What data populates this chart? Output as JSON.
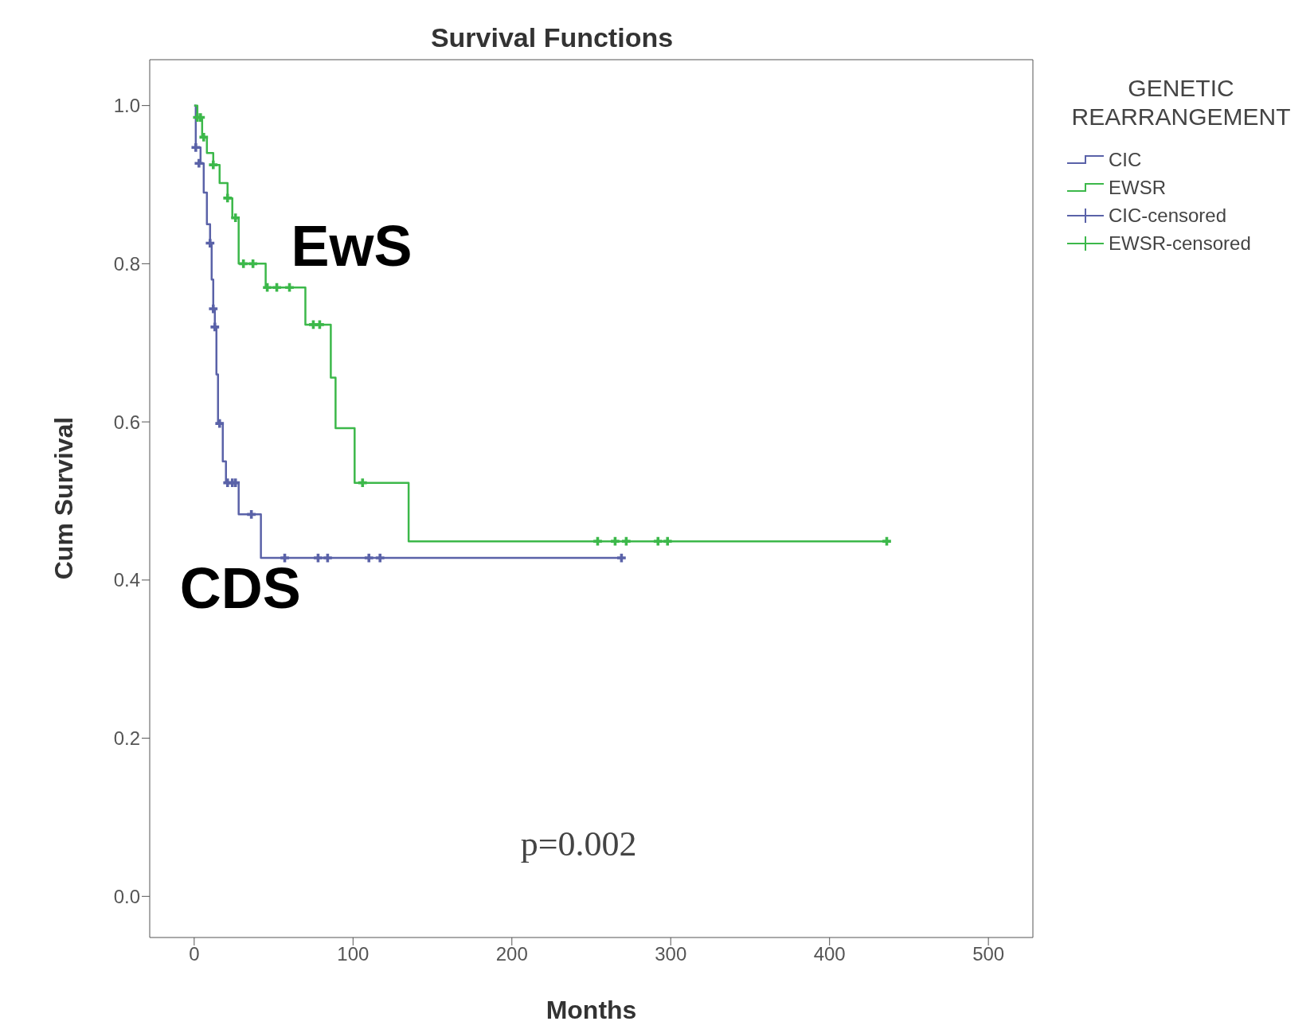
{
  "chart_data": {
    "type": "step",
    "title": "Survival Functions",
    "xlabel": "Months",
    "ylabel": "Cum Survival",
    "legend_title": "GENETIC REARRANGEMENT",
    "legend": "top right",
    "grid": false,
    "xlim": [
      -28,
      528
    ],
    "xticks": [
      0,
      100,
      200,
      300,
      400,
      500
    ],
    "ylim": [
      -0.052,
      1.058
    ],
    "yticks": [
      {
        "value": 0,
        "label": "0.0"
      },
      {
        "value": 0.2,
        "label": "0.2"
      },
      {
        "value": 0.4,
        "label": "0.4"
      },
      {
        "value": 0.6,
        "label": "0.6"
      },
      {
        "value": 0.8,
        "label": "0.8"
      },
      {
        "value": 1,
        "label": "1.0"
      }
    ],
    "series": [
      {
        "name": "CIC",
        "color": "#5a62a8",
        "marker": "none",
        "x": [
          0,
          1,
          4,
          6,
          8,
          10,
          11,
          12,
          13,
          14,
          15,
          18,
          20,
          28,
          42,
          269
        ],
        "values": [
          1,
          0.947,
          0.927,
          0.89,
          0.85,
          0.826,
          0.78,
          0.743,
          0.72,
          0.66,
          0.598,
          0.55,
          0.523,
          0.483,
          0.428,
          0.428
        ]
      },
      {
        "name": "EWSR",
        "color": "#3cb84a",
        "marker": "none",
        "x": [
          0,
          2,
          5,
          8,
          12,
          16,
          21,
          24,
          28,
          45,
          70,
          86,
          89,
          101,
          135,
          436
        ],
        "values": [
          1,
          0.985,
          0.96,
          0.94,
          0.925,
          0.902,
          0.883,
          0.858,
          0.8,
          0.77,
          0.723,
          0.656,
          0.592,
          0.523,
          0.449,
          0.449
        ]
      },
      {
        "name": "CIC-censored",
        "type": "scatter",
        "color": "#5a62a8",
        "marker": "cross",
        "x": [
          1,
          3,
          10,
          12,
          13,
          16,
          21,
          24,
          26,
          36,
          57,
          78,
          84,
          110,
          117,
          269
        ],
        "values": [
          0.947,
          0.927,
          0.826,
          0.743,
          0.72,
          0.598,
          0.523,
          0.523,
          0.523,
          0.483,
          0.428,
          0.428,
          0.428,
          0.428,
          0.428,
          0.428
        ]
      },
      {
        "name": "EWSR-censored",
        "type": "scatter",
        "color": "#3cb84a",
        "marker": "cross",
        "x": [
          2,
          4,
          6,
          12,
          21,
          26,
          31,
          37,
          46,
          52,
          60,
          75,
          79,
          106,
          254,
          265,
          272,
          292,
          298,
          436
        ],
        "values": [
          0.985,
          0.985,
          0.96,
          0.925,
          0.883,
          0.858,
          0.8,
          0.8,
          0.77,
          0.77,
          0.77,
          0.723,
          0.723,
          0.523,
          0.449,
          0.449,
          0.449,
          0.449,
          0.449,
          0.449
        ]
      }
    ],
    "annotations": [
      "EwS",
      "CDS",
      "p=0.002"
    ]
  }
}
